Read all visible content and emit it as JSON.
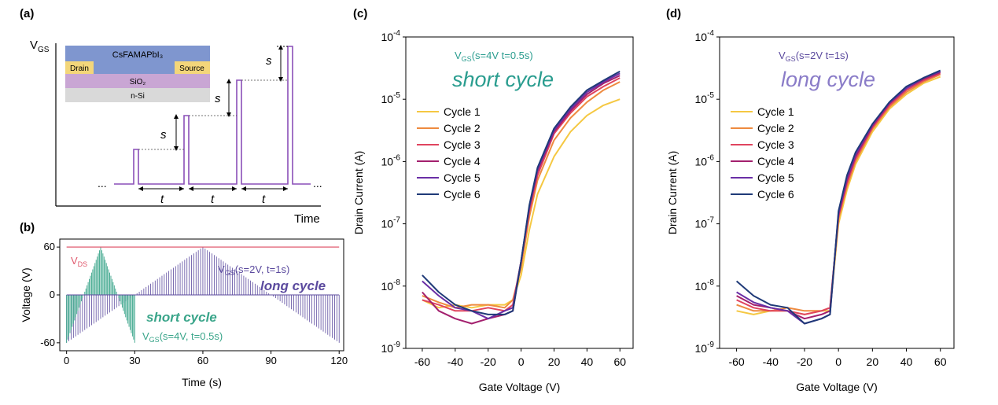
{
  "panels": {
    "a": {
      "label": "(a)",
      "y_axis_label": "V",
      "y_axis_label_sub": "GS",
      "x_axis_label": "Time",
      "ellipsis": "...",
      "step_label": "s",
      "interval_label": "t",
      "device_stack": {
        "layers": [
          "CsFAMAPbI₃",
          "SiO₂",
          "n-Si"
        ],
        "left_contact": "Drain",
        "right_contact": "Source",
        "colors": {
          "perovskite": "#7f96cf",
          "contact": "#f3d67a",
          "sio2": "#c9a6d4",
          "si": "#d9d9d9"
        }
      }
    },
    "b": {
      "label": "(b)",
      "vds_label": "V",
      "vds_sub": "DS",
      "long_label_pre": "V",
      "long_label_sub": "GS",
      "long_label_post": "(s=2V, t=1s)",
      "long_title": "long cycle",
      "short_title": "short cycle",
      "short_label_pre": "V",
      "short_label_sub": "GS",
      "short_label_post": "(s=4V, t=0.5s)",
      "colors": {
        "vds": "#e05a6e",
        "long": "#5b4a9e",
        "short": "#3aa58a"
      }
    },
    "c": {
      "label": "(c)",
      "title_pre": "V",
      "title_sub": "GS",
      "title_post": "(s=4V t=0.5s)",
      "big_title": "short cycle",
      "title_color": "#2a9d8f"
    },
    "d": {
      "label": "(d)",
      "title_pre": "V",
      "title_sub": "GS",
      "title_post": "(s=2V t=1s)",
      "big_title": "long cycle",
      "title_color": "#8a7cc8"
    }
  },
  "chart_data": [
    {
      "panel": "b",
      "type": "line",
      "xlabel": "Time (s)",
      "ylabel": "Voltage (V)",
      "xlim": [
        -3,
        122
      ],
      "ylim": [
        -70,
        70
      ],
      "xticks": [
        0,
        30,
        60,
        90,
        120
      ],
      "yticks": [
        -60,
        0,
        60
      ],
      "series": [
        {
          "name": "VDS",
          "x": [
            0,
            120
          ],
          "y": [
            60,
            60
          ]
        },
        {
          "name": "VGS(s=2V, t=1s)",
          "pulse_interval": 1,
          "step": 2,
          "x": [
            0,
            60,
            120
          ],
          "y": [
            -60,
            60,
            -60
          ]
        },
        {
          "name": "VGS(s=4V, t=0.5s)",
          "pulse_interval": 0.5,
          "step": 4,
          "x": [
            0,
            15,
            30
          ],
          "y": [
            -60,
            60,
            -60
          ]
        }
      ]
    },
    {
      "panel": "c",
      "type": "line",
      "xlabel": "Gate Voltage (V)",
      "ylabel": "Drain Current (A)",
      "yscale": "log",
      "xlim": [
        -70,
        68
      ],
      "ylim": [
        1e-09,
        0.0001
      ],
      "xticks": [
        -60,
        -40,
        -20,
        0,
        20,
        40,
        60
      ],
      "yticks": [
        "10^-9",
        "10^-8",
        "10^-7",
        "10^-6",
        "10^-5",
        "10^-4"
      ],
      "legend": "upper-left",
      "x": [
        -60,
        -50,
        -40,
        -30,
        -20,
        -10,
        -5,
        0,
        5,
        10,
        20,
        30,
        40,
        50,
        60
      ],
      "series": [
        {
          "name": "Cycle 1",
          "color": "#f5c842",
          "y": [
            6e-09,
            4.5e-09,
            5e-09,
            4.5e-09,
            5e-09,
            5e-09,
            6e-09,
            1.5e-08,
            8e-08,
            3e-07,
            1.2e-06,
            3e-06,
            5.5e-06,
            8e-06,
            1e-05
          ]
        },
        {
          "name": "Cycle 2",
          "color": "#ee8a3f",
          "y": [
            7e-09,
            5.5e-09,
            4.5e-09,
            5e-09,
            5e-09,
            4.5e-09,
            6e-09,
            2e-08,
            1.3e-07,
            5e-07,
            2.2e-06,
            5e-06,
            9e-06,
            1.4e-05,
            1.9e-05
          ]
        },
        {
          "name": "Cycle 3",
          "color": "#e0445f",
          "y": [
            6e-09,
            5e-09,
            4e-09,
            4e-09,
            4.5e-09,
            4e-09,
            5e-09,
            2.5e-08,
            1.6e-07,
            6e-07,
            2.8e-06,
            6e-06,
            1.1e-05,
            1.6e-05,
            2.2e-05
          ]
        },
        {
          "name": "Cycle 4",
          "color": "#a3206e",
          "y": [
            8e-09,
            4e-09,
            3e-09,
            2.5e-09,
            3e-09,
            3.5e-09,
            4e-09,
            2.5e-08,
            1.8e-07,
            7e-07,
            3e-06,
            6.5e-06,
            1.2e-05,
            1.8e-05,
            2.4e-05
          ]
        },
        {
          "name": "Cycle 5",
          "color": "#6a2fa6",
          "y": [
            1.2e-08,
            7e-09,
            4.5e-09,
            4e-09,
            3e-09,
            4e-09,
            4.5e-09,
            2.5e-08,
            1.9e-07,
            7.5e-07,
            3.2e-06,
            7e-06,
            1.3e-05,
            1.9e-05,
            2.6e-05
          ]
        },
        {
          "name": "Cycle 6",
          "color": "#1f3a78",
          "y": [
            1.5e-08,
            8e-09,
            5e-09,
            4e-09,
            3.5e-09,
            3.5e-09,
            4e-09,
            2.5e-08,
            2e-07,
            8e-07,
            3.4e-06,
            7.5e-06,
            1.4e-05,
            2e-05,
            2.8e-05
          ]
        }
      ]
    },
    {
      "panel": "d",
      "type": "line",
      "xlabel": "Gate Voltage (V)",
      "ylabel": "Drain Current (A)",
      "yscale": "log",
      "xlim": [
        -70,
        68
      ],
      "ylim": [
        1e-09,
        0.0001
      ],
      "xticks": [
        -60,
        -40,
        -20,
        0,
        20,
        40,
        60
      ],
      "yticks": [
        "10^-9",
        "10^-8",
        "10^-7",
        "10^-6",
        "10^-5",
        "10^-4"
      ],
      "legend": "upper-left",
      "x": [
        -60,
        -50,
        -40,
        -30,
        -20,
        -10,
        -5,
        0,
        5,
        10,
        20,
        30,
        40,
        50,
        60
      ],
      "series": [
        {
          "name": "Cycle 1",
          "color": "#f5c842",
          "y": [
            4e-09,
            3.5e-09,
            4e-09,
            4e-09,
            3.5e-09,
            4e-09,
            4e-09,
            1e-07,
            3.5e-07,
            9e-07,
            3e-06,
            7e-06,
            1.2e-05,
            1.8e-05,
            2.3e-05
          ]
        },
        {
          "name": "Cycle 2",
          "color": "#ee8a3f",
          "y": [
            5e-09,
            4e-09,
            4e-09,
            4.5e-09,
            4e-09,
            4e-09,
            4.5e-09,
            1.2e-07,
            4e-07,
            1e-06,
            3.3e-06,
            7.5e-06,
            1.3e-05,
            1.9e-05,
            2.5e-05
          ]
        },
        {
          "name": "Cycle 3",
          "color": "#e0445f",
          "y": [
            6e-09,
            4.5e-09,
            4e-09,
            4e-09,
            3.5e-09,
            4e-09,
            4.5e-09,
            1.3e-07,
            4.5e-07,
            1.1e-06,
            3.5e-06,
            8e-06,
            1.4e-05,
            2e-05,
            2.6e-05
          ]
        },
        {
          "name": "Cycle 4",
          "color": "#a3206e",
          "y": [
            7e-09,
            5e-09,
            4.5e-09,
            4e-09,
            3e-09,
            3.5e-09,
            4e-09,
            1.4e-07,
            5e-07,
            1.2e-06,
            3.7e-06,
            8.5e-06,
            1.5e-05,
            2.1e-05,
            2.7e-05
          ]
        },
        {
          "name": "Cycle 5",
          "color": "#6a2fa6",
          "y": [
            8e-09,
            5.5e-09,
            4.5e-09,
            4e-09,
            2.5e-09,
            3e-09,
            3.5e-09,
            1.5e-07,
            5.5e-07,
            1.3e-06,
            3.9e-06,
            8.8e-06,
            1.5e-05,
            2.2e-05,
            2.8e-05
          ]
        },
        {
          "name": "Cycle 6",
          "color": "#1f3a78",
          "y": [
            1.2e-08,
            7e-09,
            5e-09,
            4.5e-09,
            2.5e-09,
            3e-09,
            3.5e-09,
            1.6e-07,
            6e-07,
            1.4e-06,
            4e-06,
            9e-06,
            1.6e-05,
            2.2e-05,
            2.9e-05
          ]
        }
      ]
    }
  ]
}
